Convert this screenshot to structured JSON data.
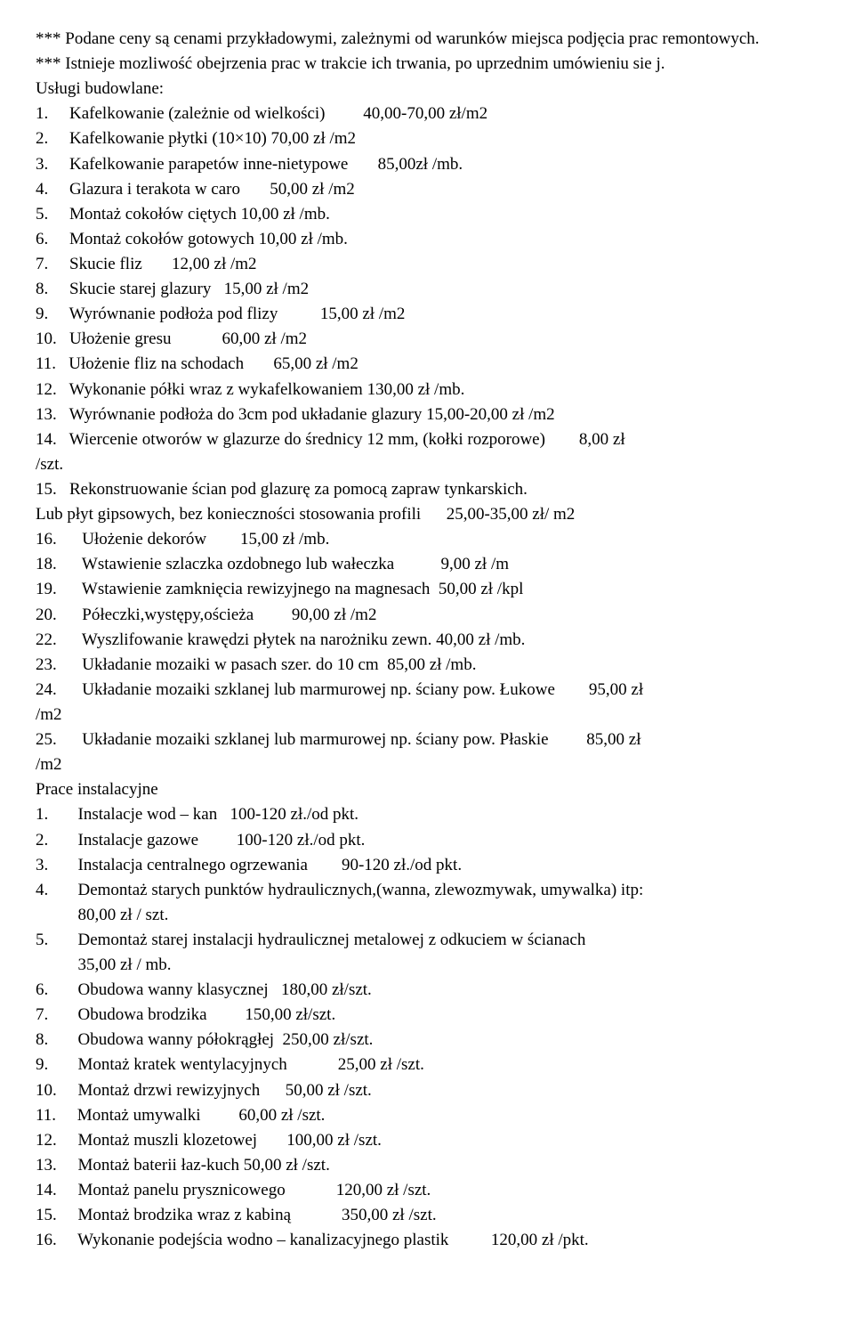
{
  "lines": [
    "*** Podane ceny są cenami przykładowymi, zależnymi od warunków miejsca podjęcia prac remontowych.",
    "*** Istnieje mozliwość obejrzenia prac w trakcie ich trwania, po uprzednim umówieniu sie j.",
    "Usługi budowlane:",
    "1.     Kafelkowanie (zależnie od wielkości)         40,00-70,00 zł/m2",
    "2.     Kafelkowanie płytki (10×10) 70,00 zł /m2",
    "3.     Kafelkowanie parapetów inne-nietypowe       85,00zł /mb.",
    "4.     Glazura i terakota w caro       50,00 zł /m2",
    "5.     Montaż cokołów ciętych 10,00 zł /mb.",
    "6.     Montaż cokołów gotowych 10,00 zł /mb.",
    "7.     Skucie fliz       12,00 zł /m2",
    "8.     Skucie starej glazury   15,00 zł /m2",
    "9.     Wyrównanie podłoża pod flizy          15,00 zł /m2",
    "10.   Ułożenie gresu            60,00 zł /m2",
    "11.   Ułożenie fliz na schodach       65,00 zł /m2",
    "12.   Wykonanie półki wraz z wykafelkowaniem 130,00 zł /mb.",
    "13.   Wyrównanie podłoża do 3cm pod układanie glazury 15,00-20,00 zł /m2",
    "14.   Wiercenie otworów w glazurze do średnicy 12 mm, (kołki rozporowe)        8,00 zł",
    "/szt.",
    "15.   Rekonstruowanie ścian pod glazurę za pomocą zapraw tynkarskich.",
    "Lub płyt gipsowych, bez konieczności stosowania profili      25,00-35,00 zł/ m2",
    "16.      Ułożenie dekorów        15,00 zł /mb.",
    "18.      Wstawienie szlaczka ozdobnego lub wałeczka           9,00 zł /m",
    "19.      Wstawienie zamknięcia rewizyjnego na magnesach  50,00 zł /kpl",
    "20.      Półeczki,występy,ościeża         90,00 zł /m2",
    "22.      Wyszlifowanie krawędzi płytek na narożniku zewn. 40,00 zł /mb.",
    "23.      Układanie mozaiki w pasach szer. do 10 cm  85,00 zł /mb.",
    "24.      Układanie mozaiki szklanej lub marmurowej np. ściany pow. Łukowe        95,00 zł",
    "/m2",
    "25.      Układanie mozaiki szklanej lub marmurowej np. ściany pow. Płaskie         85,00 zł",
    "/m2",
    "Prace instalacyjne",
    "1.       Instalacje wod – kan   100-120 zł./od pkt.",
    "2.       Instalacje gazowe         100-120 zł./od pkt.",
    "3.       Instalacja centralnego ogrzewania        90-120 zł./od pkt.",
    "4.       Demontaż starych punktów hydraulicznych,(wanna, zlewozmywak, umywalka) itp:",
    "          80,00 zł / szt.",
    "5.       Demontaż starej instalacji hydraulicznej metalowej z odkuciem w ścianach",
    "          35,00 zł / mb.",
    "6.       Obudowa wanny klasycznej   180,00 zł/szt.",
    "7.       Obudowa brodzika         150,00 zł/szt.",
    "8.       Obudowa wanny półokrągłej  250,00 zł/szt.",
    "9.       Montaż kratek wentylacyjnych            25,00 zł /szt.",
    "10.     Montaż drzwi rewizyjnych      50,00 zł /szt.",
    "11.     Montaż umywalki         60,00 zł /szt.",
    "12.     Montaż muszli klozetowej       100,00 zł /szt.",
    "13.     Montaż baterii łaz-kuch 50,00 zł /szt.",
    "14.     Montaż panelu prysznicowego            120,00 zł /szt.",
    "15.     Montaż brodzika wraz z kabiną            350,00 zł /szt.",
    "16.     Wykonanie podejścia wodno – kanalizacyjnego plastik          120,00 zł /pkt."
  ]
}
